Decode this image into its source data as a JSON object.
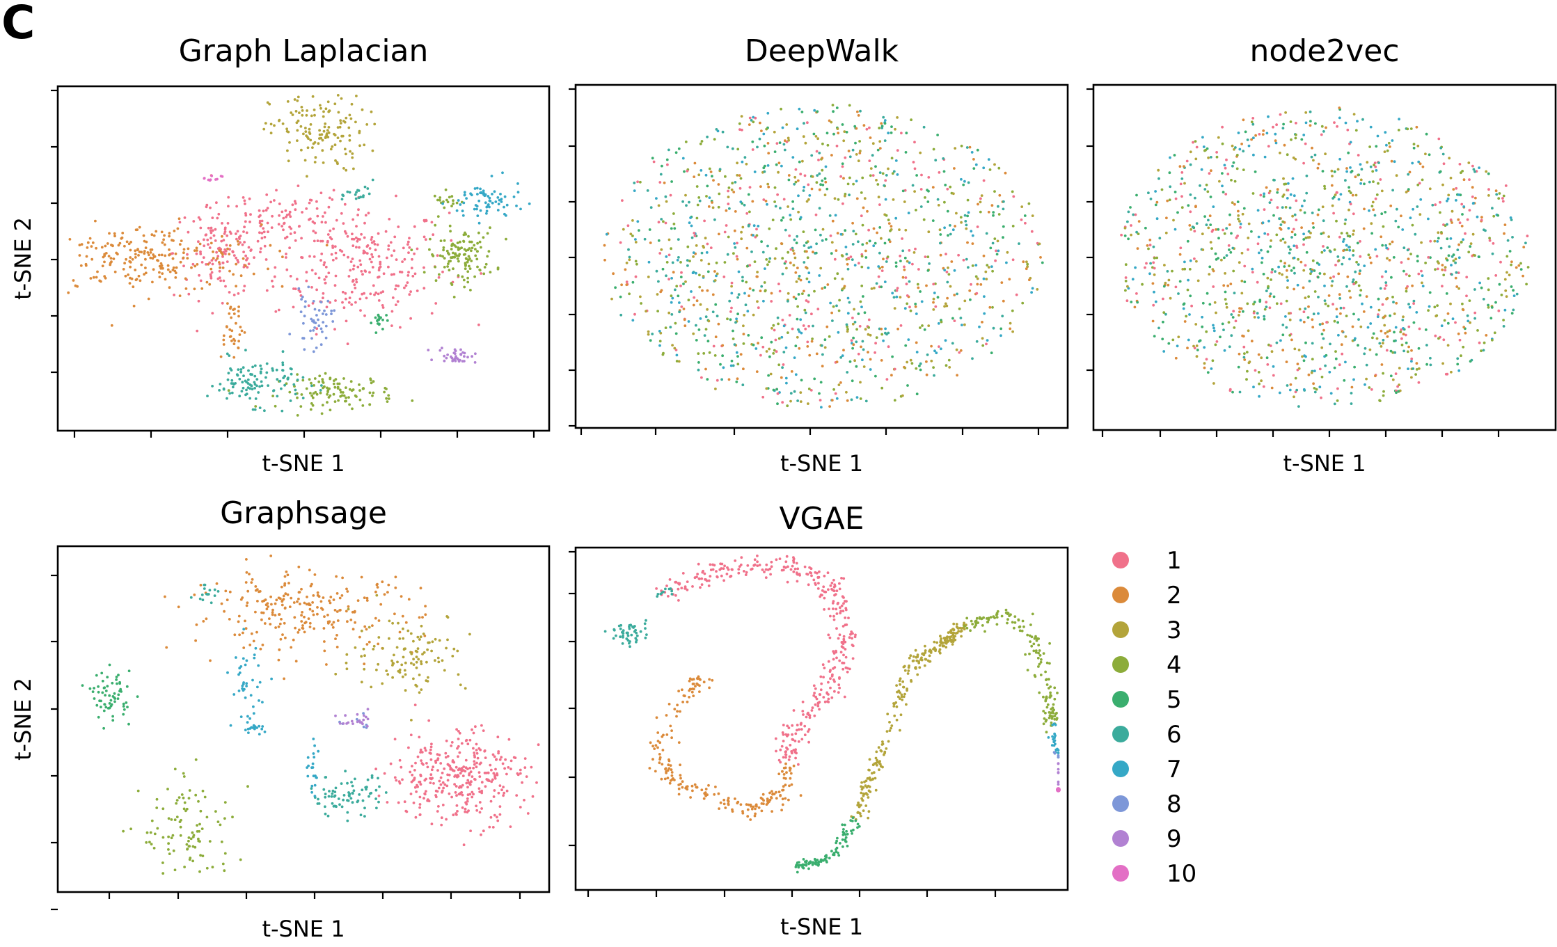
{
  "panel_label": "C",
  "palette": [
    "#f0718a",
    "#db8a3a",
    "#b3a43a",
    "#8cac3a",
    "#3aae6e",
    "#3bab9c",
    "#35a8c6",
    "#7d97d8",
    "#b181d2",
    "#e36fc5"
  ],
  "legend": {
    "entries": [
      {
        "label": "1",
        "color": "#f0718a"
      },
      {
        "label": "2",
        "color": "#db8a3a"
      },
      {
        "label": "3",
        "color": "#b3a43a"
      },
      {
        "label": "4",
        "color": "#8cac3a"
      },
      {
        "label": "5",
        "color": "#3aae6e"
      },
      {
        "label": "6",
        "color": "#3bab9c"
      },
      {
        "label": "7",
        "color": "#35a8c6"
      },
      {
        "label": "8",
        "color": "#7d97d8"
      },
      {
        "label": "9",
        "color": "#b181d2"
      },
      {
        "label": "10",
        "color": "#e36fc5"
      }
    ]
  },
  "chart_data": [
    {
      "type": "scatter",
      "title": "Graph Laplacian",
      "xlabel": "t-SNE 1",
      "ylabel": "t-SNE 2",
      "xlim": [
        0,
        100
      ],
      "ylim": [
        0,
        100
      ],
      "tick_labels_shown": false,
      "clusters": [
        {
          "class": "1",
          "cx": 62,
          "cy": 48,
          "sx": 9,
          "sy": 9,
          "n": 260
        },
        {
          "class": "1",
          "cx": 33,
          "cy": 52,
          "sx": 5,
          "sy": 7,
          "n": 140
        },
        {
          "class": "1",
          "cx": 47,
          "cy": 62,
          "sx": 6,
          "sy": 4,
          "n": 80
        },
        {
          "class": "2",
          "cx": 17,
          "cy": 50,
          "sx": 12,
          "sy": 5,
          "n": 240
        },
        {
          "class": "2",
          "cx": 35,
          "cy": 30,
          "sx": 1.5,
          "sy": 5,
          "n": 35
        },
        {
          "class": "3",
          "cx": 53,
          "cy": 88,
          "sx": 5,
          "sy": 6,
          "n": 140
        },
        {
          "class": "4",
          "cx": 83,
          "cy": 51,
          "sx": 3.5,
          "sy": 4,
          "n": 120
        },
        {
          "class": "4",
          "cx": 57,
          "cy": 10,
          "sx": 6,
          "sy": 2.5,
          "n": 110
        },
        {
          "class": "4",
          "cx": 80,
          "cy": 67,
          "sx": 1.5,
          "sy": 1.5,
          "n": 18
        },
        {
          "class": "5",
          "cx": 66,
          "cy": 31,
          "sx": 0.8,
          "sy": 1.5,
          "n": 18
        },
        {
          "class": "6",
          "cx": 40,
          "cy": 13,
          "sx": 5,
          "sy": 3.5,
          "n": 110
        },
        {
          "class": "6",
          "cx": 62,
          "cy": 69,
          "sx": 1.5,
          "sy": 2,
          "n": 18
        },
        {
          "class": "7",
          "cx": 88,
          "cy": 67,
          "sx": 4,
          "sy": 3,
          "n": 70
        },
        {
          "class": "8",
          "cx": 52,
          "cy": 31,
          "sx": 2,
          "sy": 4,
          "n": 45
        },
        {
          "class": "9",
          "cx": 82,
          "cy": 21,
          "sx": 2,
          "sy": 1.2,
          "n": 35
        },
        {
          "class": "10",
          "cx": 31,
          "cy": 74,
          "sx": 1,
          "sy": 0.5,
          "n": 10
        }
      ]
    },
    {
      "type": "scatter",
      "title": "DeepWalk",
      "xlabel": "t-SNE 1",
      "ylabel": "",
      "xlim": [
        0,
        100
      ],
      "ylim": [
        0,
        100
      ],
      "tick_labels_shown": false,
      "clusters": [
        {
          "class": "mixed",
          "shape": "disk",
          "cx": 50,
          "cy": 50,
          "rx": 46,
          "ry": 46,
          "n": 1300
        }
      ]
    },
    {
      "type": "scatter",
      "title": "node2vec",
      "xlabel": "t-SNE 1",
      "ylabel": "",
      "xlim": [
        0,
        100
      ],
      "ylim": [
        0,
        100
      ],
      "tick_labels_shown": false,
      "clusters": [
        {
          "class": "mixed",
          "shape": "disk",
          "cx": 50,
          "cy": 50,
          "rx": 46,
          "ry": 45,
          "n": 1300
        }
      ]
    },
    {
      "type": "scatter",
      "title": "Graphsage",
      "xlabel": "t-SNE 1",
      "ylabel": "t-SNE 2",
      "xlim": [
        0,
        100
      ],
      "ylim": [
        0,
        100
      ],
      "tick_labels_shown": false,
      "clusters": [
        {
          "class": "1",
          "cx": 82,
          "cy": 33,
          "sx": 7,
          "sy": 7,
          "n": 330
        },
        {
          "class": "2",
          "cx": 50,
          "cy": 82,
          "sx": 12,
          "sy": 6,
          "n": 240
        },
        {
          "class": "3",
          "cx": 72,
          "cy": 70,
          "sx": 6,
          "sy": 6,
          "n": 110
        },
        {
          "class": "4",
          "cx": 26,
          "cy": 16,
          "sx": 5,
          "sy": 8,
          "n": 100
        },
        {
          "class": "5",
          "cx": 10,
          "cy": 57,
          "sx": 2,
          "sy": 3.5,
          "n": 65
        },
        {
          "class": "6",
          "cx": 59,
          "cy": 27,
          "sx": 4,
          "sy": 3,
          "n": 75
        },
        {
          "class": "6",
          "cx": 30,
          "cy": 87,
          "sx": 1.5,
          "sy": 1.5,
          "n": 15
        },
        {
          "class": "7",
          "cx": 38,
          "cy": 60,
          "sx": 1.5,
          "sy": 6,
          "n": 40
        },
        {
          "class": "7",
          "cx": 40,
          "cy": 47,
          "sx": 1.5,
          "sy": 1,
          "n": 15
        },
        {
          "class": "7",
          "cx": 52,
          "cy": 35,
          "sx": 1,
          "sy": 4,
          "n": 20
        },
        {
          "class": "8",
          "cx": 62,
          "cy": 48,
          "sx": 1.5,
          "sy": 1.5,
          "n": 8
        },
        {
          "class": "9",
          "cx": 61,
          "cy": 49,
          "sx": 2,
          "sy": 1.2,
          "n": 20
        }
      ]
    },
    {
      "type": "scatter",
      "title": "VGAE",
      "xlabel": "t-SNE 1",
      "ylabel": "",
      "xlim": [
        0,
        100
      ],
      "ylim": [
        0,
        100
      ],
      "tick_labels_shown": false,
      "curves": [
        {
          "class": "1",
          "n": 360,
          "spread": 1.6,
          "pts": [
            [
              17,
              88
            ],
            [
              30,
              95
            ],
            [
              44,
              96
            ],
            [
              52,
              90
            ],
            [
              55,
              75
            ],
            [
              52,
              60
            ],
            [
              45,
              48
            ],
            [
              43,
              37
            ]
          ]
        },
        {
          "class": "2",
          "n": 210,
          "spread": 1.3,
          "pts": [
            [
              43,
              37
            ],
            [
              42,
              27
            ],
            [
              35,
              22
            ],
            [
              26,
              27
            ],
            [
              18,
              32
            ],
            [
              17,
              43
            ],
            [
              22,
              58
            ],
            [
              25,
              62
            ]
          ]
        },
        {
          "class": "3",
          "n": 120,
          "spread": 0.9,
          "pts": [
            [
              68,
              65
            ],
            [
              75,
              73
            ],
            [
              80,
              78
            ]
          ]
        },
        {
          "class": "3",
          "n": 120,
          "spread": 0.9,
          "pts": [
            [
              57,
              20
            ],
            [
              62,
              38
            ],
            [
              68,
              65
            ]
          ]
        },
        {
          "class": "4",
          "n": 150,
          "spread": 1.0,
          "pts": [
            [
              80,
              78
            ],
            [
              88,
              82
            ],
            [
              94,
              75
            ],
            [
              97,
              58
            ],
            [
              98,
              48
            ]
          ]
        },
        {
          "class": "5",
          "n": 90,
          "spread": 0.7,
          "pts": [
            [
              45,
              5
            ],
            [
              52,
              8
            ],
            [
              57,
              20
            ]
          ]
        },
        {
          "class": "6",
          "n": 45,
          "spread": 1.6,
          "pts": [
            [
              9,
              75
            ],
            [
              11,
              77
            ]
          ]
        },
        {
          "class": "6",
          "n": 10,
          "spread": 0.8,
          "pts": [
            [
              17,
              88
            ],
            [
              18,
              89
            ]
          ]
        },
        {
          "class": "7",
          "n": 20,
          "spread": 0.5,
          "pts": [
            [
              98,
              48
            ],
            [
              99,
              40
            ]
          ]
        },
        {
          "class": "8",
          "n": 8,
          "spread": 0.5,
          "pts": [
            [
              99,
              40
            ],
            [
              100,
              37
            ]
          ]
        },
        {
          "class": "9",
          "n": 18,
          "spread": 0.4,
          "pts": [
            [
              100,
              37
            ],
            [
              100,
              30
            ]
          ]
        },
        {
          "class": "10",
          "n": 6,
          "spread": 0.4,
          "pts": [
            [
              100,
              30
            ],
            [
              100,
              28
            ]
          ]
        }
      ]
    }
  ]
}
